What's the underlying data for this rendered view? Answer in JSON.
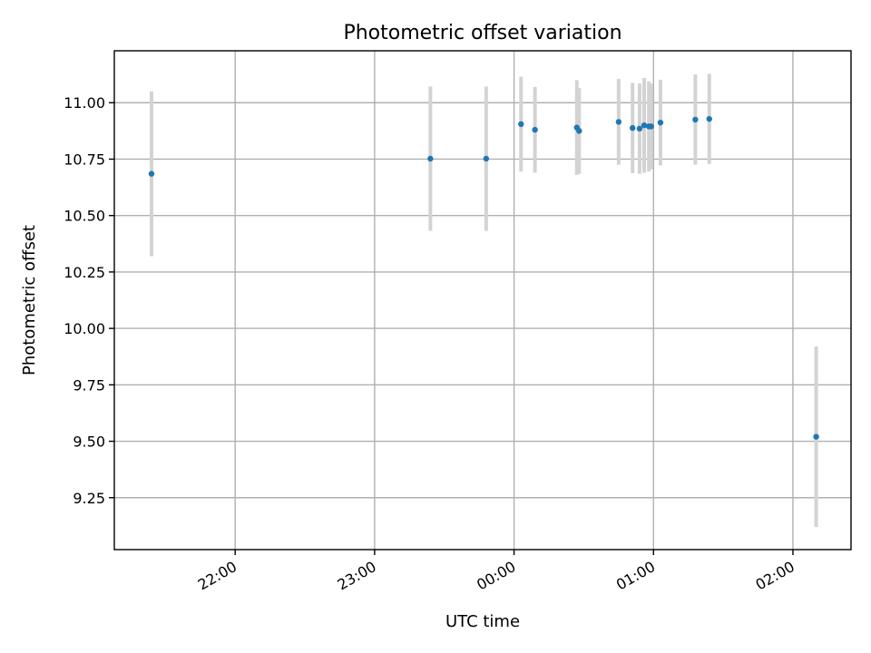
{
  "chart_data": {
    "type": "scatter",
    "title": "Photometric offset variation",
    "xlabel": "UTC time",
    "ylabel": "Photometric offset",
    "grid": true,
    "xlim": [
      "21:08",
      "02:25"
    ],
    "ylim": [
      9.02,
      11.23
    ],
    "xticks": [
      "22:00",
      "23:00",
      "00:00",
      "01:00",
      "02:00"
    ],
    "yticks": [
      "9.25",
      "9.50",
      "9.75",
      "10.00",
      "10.25",
      "10.50",
      "10.75",
      "11.00"
    ],
    "point_color": "#1f77b4",
    "errorbar_color": "#d3d3d3",
    "points": [
      {
        "x": "21:24",
        "y": 10.685,
        "err": 0.365
      },
      {
        "x": "23:24",
        "y": 10.752,
        "err": 0.32
      },
      {
        "x": "23:48",
        "y": 10.752,
        "err": 0.32
      },
      {
        "x": "00:03",
        "y": 10.905,
        "err": 0.21
      },
      {
        "x": "00:09",
        "y": 10.88,
        "err": 0.19
      },
      {
        "x": "00:27",
        "y": 10.89,
        "err": 0.21
      },
      {
        "x": "00:28",
        "y": 10.875,
        "err": 0.19
      },
      {
        "x": "00:45",
        "y": 10.915,
        "err": 0.19
      },
      {
        "x": "00:51",
        "y": 10.888,
        "err": 0.2
      },
      {
        "x": "00:54",
        "y": 10.885,
        "err": 0.2
      },
      {
        "x": "00:56",
        "y": 10.9,
        "err": 0.21
      },
      {
        "x": "00:58",
        "y": 10.895,
        "err": 0.2
      },
      {
        "x": "00:59",
        "y": 10.895,
        "err": 0.19
      },
      {
        "x": "01:03",
        "y": 10.912,
        "err": 0.19
      },
      {
        "x": "01:18",
        "y": 10.925,
        "err": 0.2
      },
      {
        "x": "01:24",
        "y": 10.928,
        "err": 0.2
      },
      {
        "x": "02:10",
        "y": 9.52,
        "err": 0.4
      }
    ]
  }
}
